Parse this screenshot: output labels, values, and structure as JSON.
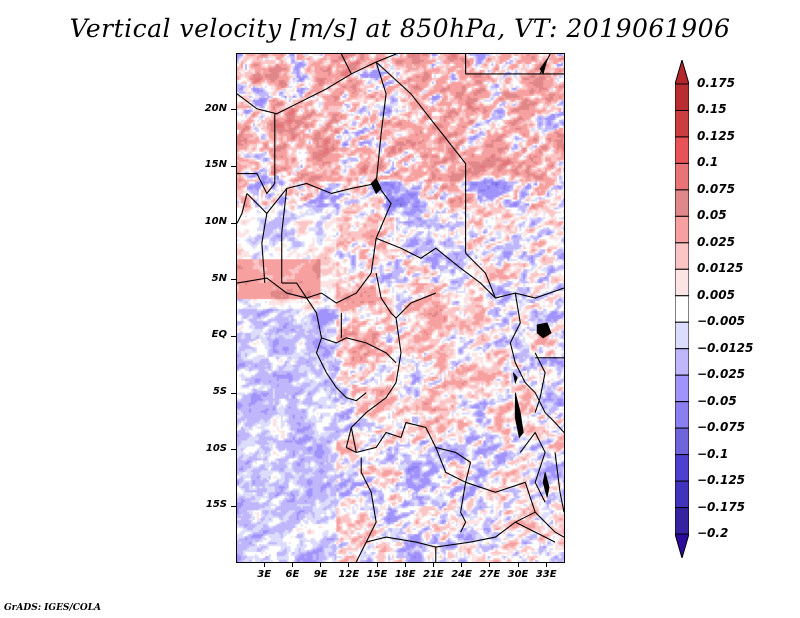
{
  "title": "Vertical velocity [m/s] at 850hPa, VT: 2019061906",
  "credit": "GrADS: IGES/COLA",
  "chart_data": {
    "type": "heatmap",
    "title": "Vertical velocity [m/s] at 850hPa, VT: 2019061906",
    "variable": "Vertical velocity",
    "units": "m/s",
    "level": "850hPa",
    "valid_time": "2019061906",
    "xlabel": "",
    "ylabel": "",
    "lon_range": [
      0,
      35
    ],
    "lat_range": [
      -20,
      25
    ],
    "x_ticks": [
      "3E",
      "6E",
      "9E",
      "12E",
      "15E",
      "18E",
      "21E",
      "24E",
      "27E",
      "30E",
      "33E"
    ],
    "x_tick_values": [
      3,
      6,
      9,
      12,
      15,
      18,
      21,
      24,
      27,
      30,
      33
    ],
    "y_ticks": [
      "20N",
      "15N",
      "10N",
      "5N",
      "EQ",
      "5S",
      "10S",
      "15S"
    ],
    "y_tick_values": [
      20,
      15,
      10,
      5,
      0,
      -5,
      -10,
      -15
    ],
    "colorbar": {
      "orientation": "vertical",
      "position": "right",
      "levels": [
        "0.175",
        "0.15",
        "0.125",
        "0.1",
        "0.075",
        "0.05",
        "0.025",
        "0.0125",
        "0.005",
        "-0.005",
        "-0.0125",
        "-0.025",
        "-0.05",
        "-0.075",
        "-0.1",
        "-0.125",
        "-0.175",
        "-0.2"
      ],
      "colors": [
        "#b3262b",
        "#b82e30",
        "#cc3d3f",
        "#e85357",
        "#e87478",
        "#e0878a",
        "#f7a0a0",
        "#fcc5c5",
        "#fde4e4",
        "#ffffff",
        "#dcdcfc",
        "#c0b6fc",
        "#a193fc",
        "#8a7ef0",
        "#7064dc",
        "#4f3fcf",
        "#4233bd",
        "#36239f",
        "#2b0b9c"
      ],
      "extend": "both"
    },
    "grid": false,
    "features": [
      "coastlines",
      "country borders"
    ],
    "region": "Central Africa"
  }
}
